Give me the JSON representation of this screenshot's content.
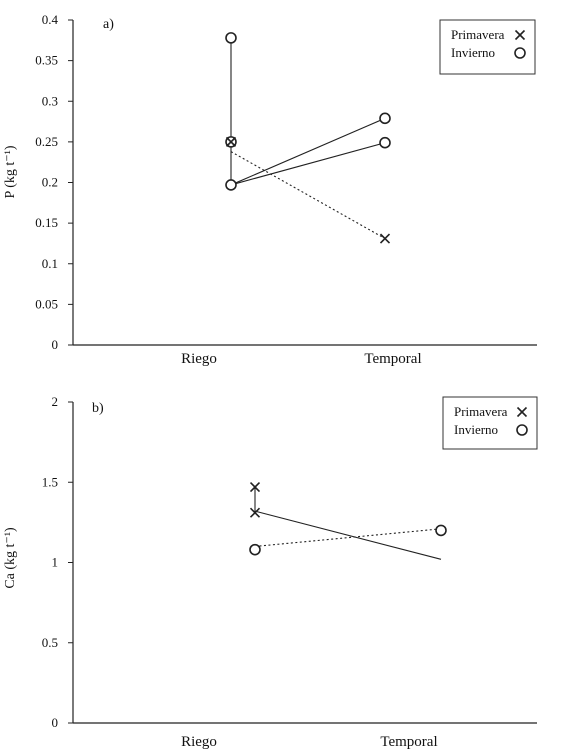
{
  "chart_data": [
    {
      "type": "scatter",
      "panel_label": "a)",
      "ylabel": "P (kg t⁻¹)",
      "categories": [
        "Riego",
        "Temporal"
      ],
      "ylim": [
        0,
        0.4
      ],
      "yticks": [
        "0",
        "0.05",
        "0.1",
        "0.15",
        "0.2",
        "0.25",
        "0.3",
        "0.35",
        "0.4"
      ],
      "legend": {
        "position": "top-right",
        "entries": [
          {
            "label": "Primavera",
            "marker": "x"
          },
          {
            "label": "Invierno",
            "marker": "o"
          }
        ]
      },
      "points": [
        {
          "marker": "o",
          "x": "Riego",
          "y": 0.378
        },
        {
          "marker": "o",
          "x": "Riego",
          "y": 0.25
        },
        {
          "marker": "x",
          "x": "Riego",
          "y": 0.25
        },
        {
          "marker": "o",
          "x": "Riego",
          "y": 0.197
        },
        {
          "marker": "o",
          "x": "Temporal",
          "y": 0.279
        },
        {
          "marker": "o",
          "x": "Temporal",
          "y": 0.249
        },
        {
          "marker": "x",
          "x": "Temporal",
          "y": 0.131
        }
      ],
      "lines": [
        {
          "style": "solid",
          "x": [
            "Riego",
            "Riego"
          ],
          "y": [
            0.378,
            0.197
          ]
        },
        {
          "style": "solid",
          "x": [
            "Riego",
            "Temporal"
          ],
          "y": [
            0.197,
            0.279
          ]
        },
        {
          "style": "solid",
          "x": [
            "Riego",
            "Temporal"
          ],
          "y": [
            0.197,
            0.249
          ]
        },
        {
          "style": "dotted",
          "x": [
            "Riego",
            "Temporal"
          ],
          "y": [
            0.238,
            0.131
          ]
        }
      ]
    },
    {
      "type": "scatter",
      "panel_label": "b)",
      "ylabel": "Ca (kg t⁻¹)",
      "categories": [
        "Riego",
        "Temporal"
      ],
      "ylim": [
        0,
        2
      ],
      "yticks": [
        "0",
        "0.5",
        "1",
        "1.5",
        "2"
      ],
      "legend": {
        "position": "top-right",
        "entries": [
          {
            "label": "Primavera",
            "marker": "x"
          },
          {
            "label": "Invierno",
            "marker": "o"
          }
        ]
      },
      "points": [
        {
          "marker": "x",
          "x": "Riego",
          "y": 1.47
        },
        {
          "marker": "x",
          "x": "Riego",
          "y": 1.31
        },
        {
          "marker": "o",
          "x": "Riego",
          "y": 1.08
        },
        {
          "marker": "o",
          "x": "Temporal",
          "y": 1.2
        }
      ],
      "lines": [
        {
          "style": "solid",
          "x": [
            "Riego",
            "Riego"
          ],
          "y": [
            1.47,
            1.31
          ]
        },
        {
          "style": "solid",
          "x": [
            "Riego",
            "Temporal"
          ],
          "y": [
            1.32,
            1.02
          ]
        },
        {
          "style": "dotted",
          "x": [
            "Riego",
            "Temporal"
          ],
          "y": [
            1.1,
            1.21
          ]
        }
      ]
    }
  ]
}
